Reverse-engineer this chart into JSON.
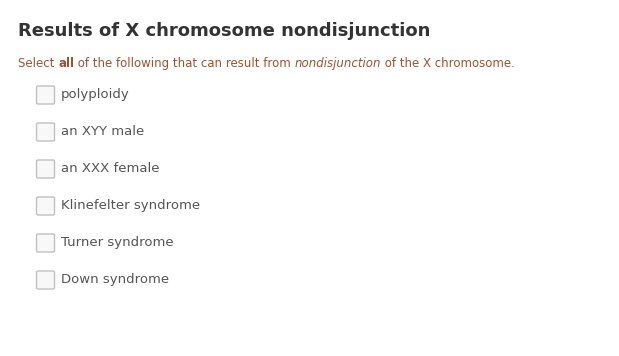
{
  "title": "Results of X chromosome nondisjunction",
  "options": [
    "polyploidy",
    "an XYY male",
    "an XXX female",
    "Klinefelter syndrome",
    "Turner syndrome",
    "Down syndrome"
  ],
  "title_color": "#333333",
  "subtitle_color": "#a0522d",
  "option_color": "#555555",
  "bg_color": "#ffffff",
  "checkbox_edge_color": "#c0c0c0",
  "checkbox_fill_color": "#f8f8f8",
  "title_fontsize": 13,
  "subtitle_fontsize": 8.5,
  "option_fontsize": 9.5,
  "fig_width": 6.19,
  "fig_height": 3.56,
  "dpi": 100
}
